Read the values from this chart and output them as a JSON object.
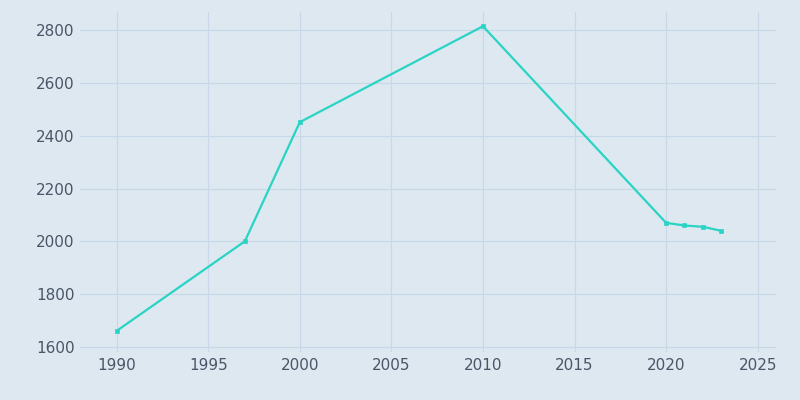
{
  "years": [
    1990,
    1997,
    2000,
    2010,
    2020,
    2021,
    2022,
    2023
  ],
  "population": [
    1660,
    2000,
    2452,
    2816,
    2070,
    2060,
    2055,
    2040
  ],
  "line_color": "#29d4c5",
  "marker_style": "s",
  "marker_size": 2.5,
  "line_width": 1.6,
  "background_color": "#dde8f0",
  "plot_bg_color": "#dde8f0",
  "grid_color": "#c8d8e8",
  "xlim": [
    1988,
    2026
  ],
  "ylim": [
    1580,
    2870
  ],
  "xticks": [
    1990,
    1995,
    2000,
    2005,
    2010,
    2015,
    2020,
    2025
  ],
  "yticks": [
    1600,
    1800,
    2000,
    2200,
    2400,
    2600,
    2800
  ],
  "tick_fontsize": 11,
  "tick_color": "#4a5568"
}
